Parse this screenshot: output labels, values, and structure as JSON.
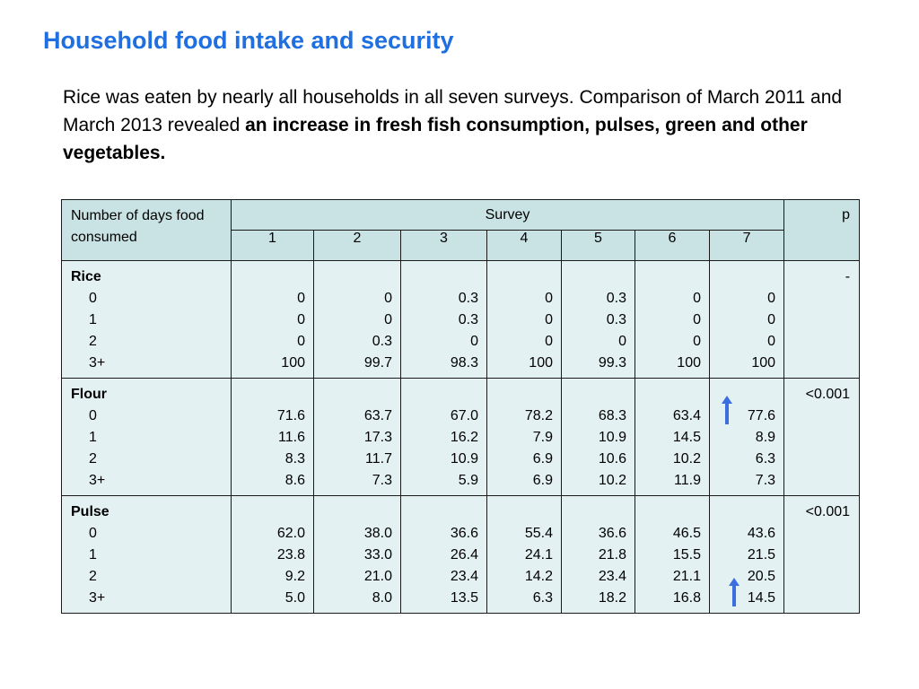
{
  "title": "Household food intake and security",
  "intro": {
    "text_plain": "Rice was eaten by nearly all households in all seven surveys.  Comparison of March 2011 and March 2013 revealed ",
    "text_bold": "an increase in fresh fish consumption, pulses, green and other vegetables."
  },
  "table": {
    "header_label": "Number of days food consumed",
    "survey_label": "Survey",
    "p_label": "p",
    "surveys": [
      "1",
      "2",
      "3",
      "4",
      "5",
      "6",
      "7"
    ],
    "groups": [
      {
        "name": "Rice",
        "p": "-",
        "levels": [
          "0",
          "1",
          "2",
          "3+"
        ],
        "values": [
          [
            "0",
            "0",
            "0.3",
            "0",
            "0.3",
            "0",
            "0"
          ],
          [
            "0",
            "0",
            "0.3",
            "0",
            "0.3",
            "0",
            "0"
          ],
          [
            "0",
            "0.3",
            "0",
            "0",
            "0",
            "0",
            "0"
          ],
          [
            "100",
            "99.7",
            "98.3",
            "100",
            "99.3",
            "100",
            "100"
          ]
        ]
      },
      {
        "name": "Flour",
        "p": "<0.001",
        "levels": [
          "0",
          "1",
          "2",
          "3+"
        ],
        "values": [
          [
            "71.6",
            "63.7",
            "67.0",
            "78.2",
            "68.3",
            "63.4",
            "77.6"
          ],
          [
            "11.6",
            "17.3",
            "16.2",
            "7.9",
            "10.9",
            "14.5",
            "8.9"
          ],
          [
            "8.3",
            "11.7",
            "10.9",
            "6.9",
            "10.6",
            "10.2",
            "6.3"
          ],
          [
            "8.6",
            "7.3",
            "5.9",
            "6.9",
            "10.2",
            "11.9",
            "7.3"
          ]
        ]
      },
      {
        "name": "Pulse",
        "p": "<0.001",
        "levels": [
          "0",
          "1",
          "2",
          "3+"
        ],
        "values": [
          [
            "62.0",
            "38.0",
            "36.6",
            "55.4",
            "36.6",
            "46.5",
            "43.6"
          ],
          [
            "23.8",
            "33.0",
            "26.4",
            "24.1",
            "21.8",
            "15.5",
            "21.5"
          ],
          [
            "9.2",
            "21.0",
            "23.4",
            "14.2",
            "23.4",
            "21.1",
            "20.5"
          ],
          [
            "5.0",
            "8.0",
            "13.5",
            "6.3",
            "18.2",
            "16.8",
            "14.5"
          ]
        ]
      }
    ]
  },
  "colors": {
    "title": "#1f6fe0",
    "header_fill": "#c9e3e5",
    "body_fill": "#e4f1f2",
    "arrow": "#3b6fe0"
  },
  "icons": [
    "up-arrow-icon"
  ]
}
